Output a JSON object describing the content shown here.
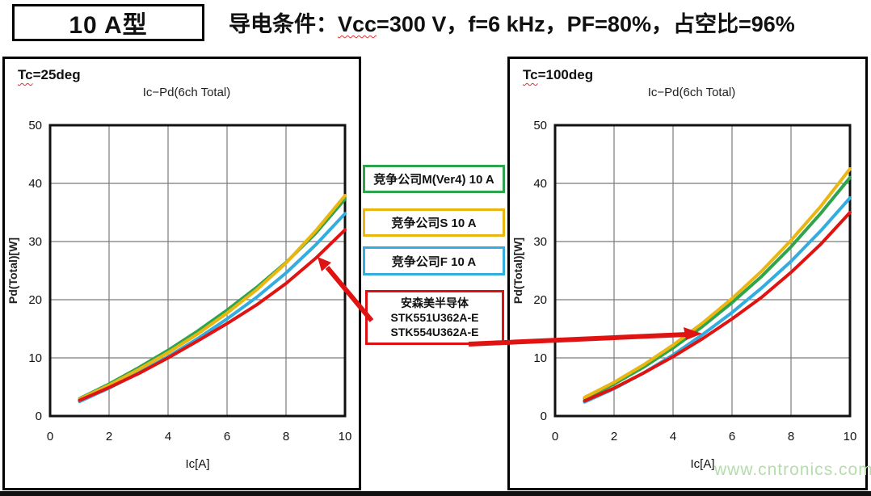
{
  "header": {
    "type_label": "10 A型",
    "conditions_prefix": "导电条件：",
    "conditions_vcc": "Vcc",
    "conditions_rest": "=300 V，f=6 kHz，PF=80%，占空比=96%"
  },
  "legend": {
    "items": [
      {
        "label": "竞争公司M(Ver4) 10 A",
        "color": "#2ea44d"
      },
      {
        "label": "竞争公司S 10 A",
        "color": "#eab712"
      },
      {
        "label": "竞争公司F 10 A",
        "color": "#33ade0"
      }
    ],
    "onsemi": {
      "lines": [
        "安森美半导体",
        "STK551U362A-E",
        "STK554U362A-E"
      ],
      "color": "#dd1111"
    }
  },
  "watermark": "www.cntronics.com",
  "chart_data": [
    {
      "type": "line",
      "tc_prefix": "Tc",
      "tc_suffix": "=25deg",
      "title": "Ic−Pd(6ch Total)",
      "xlabel": "Ic[A]",
      "ylabel": "Pd(Total)[W]",
      "xlim": [
        0,
        10
      ],
      "ylim": [
        0,
        50
      ],
      "xticks": [
        0,
        2,
        4,
        6,
        8,
        10
      ],
      "yticks": [
        0,
        10,
        20,
        30,
        40,
        50
      ],
      "grid": true,
      "legend_position": "none",
      "x": [
        1,
        2,
        3,
        4,
        5,
        6,
        7,
        8,
        9,
        10
      ],
      "series": [
        {
          "name": "竞争公司M(Ver4) 10 A",
          "color": "#2ea44d",
          "values": [
            3.0,
            5.5,
            8.3,
            11.3,
            14.6,
            18.2,
            22.1,
            26.4,
            31.4,
            37.3
          ]
        },
        {
          "name": "竞争公司S 10 A",
          "color": "#eab712",
          "values": [
            2.9,
            5.3,
            8.0,
            10.9,
            14.1,
            17.7,
            21.7,
            26.3,
            31.8,
            37.9
          ]
        },
        {
          "name": "竞争公司F 10 A",
          "color": "#33ade0",
          "values": [
            2.5,
            4.8,
            7.4,
            10.2,
            13.3,
            16.7,
            20.4,
            24.6,
            29.4,
            34.8
          ]
        },
        {
          "name": "安森美半导体 STK551U362A-E / STK554U362A-E",
          "color": "#e01313",
          "values": [
            2.7,
            4.9,
            7.3,
            10.0,
            12.9,
            15.9,
            19.1,
            22.8,
            27.1,
            32.0
          ]
        }
      ]
    },
    {
      "type": "line",
      "tc_prefix": "Tc",
      "tc_suffix": "=100deg",
      "title": "Ic−Pd(6ch Total)",
      "xlabel": "Ic[A]",
      "ylabel": "Pd(Total)[W]",
      "xlim": [
        0,
        10
      ],
      "ylim": [
        0,
        50
      ],
      "xticks": [
        0,
        2,
        4,
        6,
        8,
        10
      ],
      "yticks": [
        0,
        10,
        20,
        30,
        40,
        50
      ],
      "grid": true,
      "legend_position": "none",
      "x": [
        1,
        2,
        3,
        4,
        5,
        6,
        7,
        8,
        9,
        10
      ],
      "series": [
        {
          "name": "竞争公司M(Ver4) 10 A",
          "color": "#2ea44d",
          "values": [
            3.0,
            5.5,
            8.4,
            11.7,
            15.4,
            19.5,
            24.0,
            29.1,
            34.8,
            41.0
          ]
        },
        {
          "name": "竞争公司S 10 A",
          "color": "#eab712",
          "values": [
            3.2,
            5.8,
            8.8,
            12.2,
            16.0,
            20.2,
            24.9,
            30.2,
            36.0,
            42.5
          ]
        },
        {
          "name": "竞争公司F 10 A",
          "color": "#33ade0",
          "values": [
            2.4,
            4.7,
            7.4,
            10.5,
            14.0,
            17.8,
            22.0,
            26.6,
            31.8,
            37.5
          ]
        },
        {
          "name": "安森美半导体 STK551U362A-E / STK554U362A-E",
          "color": "#e01313",
          "values": [
            2.6,
            4.8,
            7.4,
            10.2,
            13.3,
            16.7,
            20.4,
            24.7,
            29.5,
            35.0
          ]
        }
      ]
    }
  ]
}
